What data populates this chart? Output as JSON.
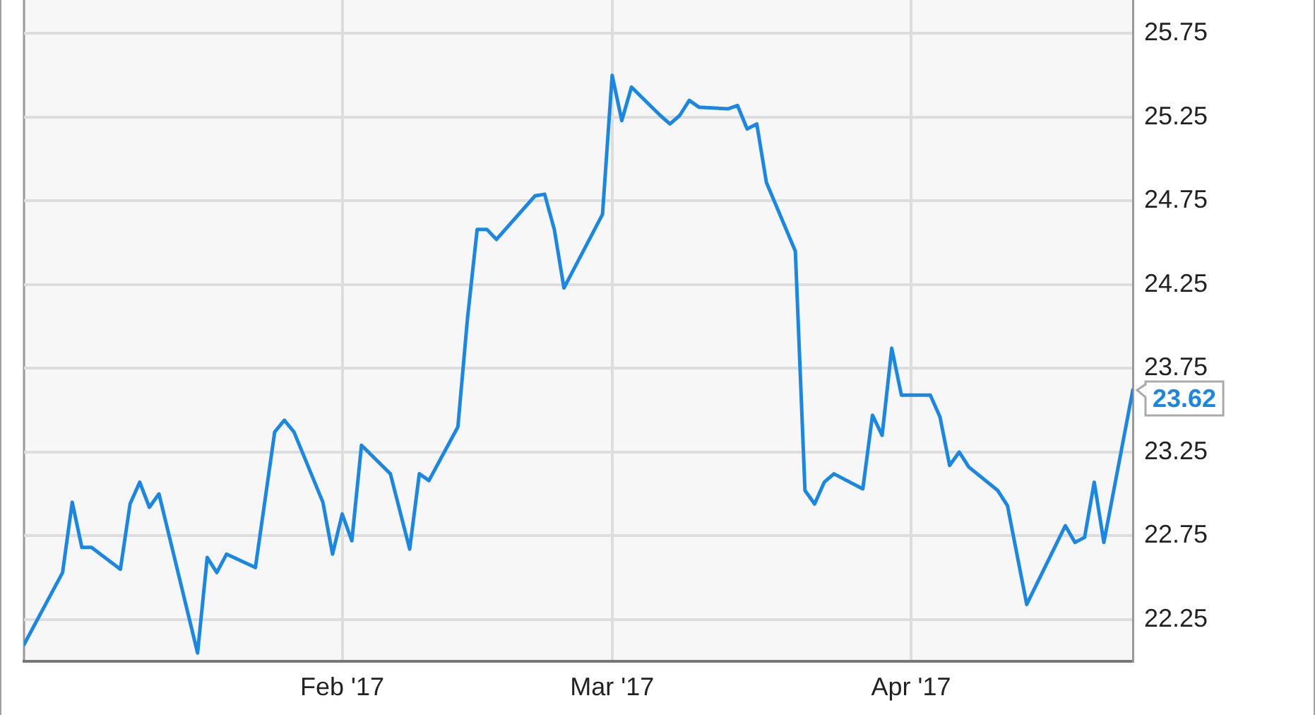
{
  "chart_data": {
    "type": "line",
    "x": [
      "2016-12-30",
      "2017-01-03",
      "2017-01-04",
      "2017-01-05",
      "2017-01-06",
      "2017-01-09",
      "2017-01-10",
      "2017-01-11",
      "2017-01-12",
      "2017-01-13",
      "2017-01-17",
      "2017-01-18",
      "2017-01-19",
      "2017-01-20",
      "2017-01-23",
      "2017-01-25",
      "2017-01-26",
      "2017-01-27",
      "2017-01-30",
      "2017-01-31",
      "2017-02-01",
      "2017-02-02",
      "2017-02-03",
      "2017-02-06",
      "2017-02-08",
      "2017-02-09",
      "2017-02-10",
      "2017-02-13",
      "2017-02-14",
      "2017-02-15",
      "2017-02-16",
      "2017-02-17",
      "2017-02-21",
      "2017-02-22",
      "2017-02-23",
      "2017-02-24",
      "2017-02-28",
      "2017-03-01",
      "2017-03-02",
      "2017-03-03",
      "2017-03-06",
      "2017-03-07",
      "2017-03-08",
      "2017-03-09",
      "2017-03-10",
      "2017-03-13",
      "2017-03-14",
      "2017-03-15",
      "2017-03-16",
      "2017-03-17",
      "2017-03-20",
      "2017-03-21",
      "2017-03-22",
      "2017-03-23",
      "2017-03-24",
      "2017-03-27",
      "2017-03-28",
      "2017-03-29",
      "2017-03-30",
      "2017-03-31",
      "2017-04-03",
      "2017-04-04",
      "2017-04-05",
      "2017-04-06",
      "2017-04-07",
      "2017-04-10",
      "2017-04-11",
      "2017-04-13",
      "2017-04-17",
      "2017-04-18",
      "2017-04-19",
      "2017-04-20",
      "2017-04-21",
      "2017-04-24"
    ],
    "values": [
      22.1,
      22.53,
      22.95,
      22.68,
      22.68,
      22.55,
      22.94,
      23.07,
      22.92,
      23.0,
      22.05,
      22.62,
      22.53,
      22.64,
      22.56,
      23.37,
      23.44,
      23.37,
      22.95,
      22.64,
      22.88,
      22.72,
      23.29,
      23.12,
      22.67,
      23.12,
      23.08,
      23.4,
      24.05,
      24.58,
      24.58,
      24.52,
      24.78,
      24.79,
      24.58,
      24.23,
      24.67,
      25.5,
      25.23,
      25.43,
      25.26,
      25.21,
      25.26,
      25.35,
      25.31,
      25.3,
      25.32,
      25.18,
      25.21,
      24.86,
      24.45,
      23.02,
      22.94,
      23.07,
      23.12,
      23.03,
      23.47,
      23.35,
      23.87,
      23.59,
      23.59,
      23.46,
      23.17,
      23.25,
      23.16,
      23.02,
      22.93,
      22.34,
      22.81,
      22.71,
      22.74,
      23.07,
      22.71,
      23.62
    ],
    "value_labels": [
      null,
      null,
      null,
      null,
      null,
      null,
      null,
      null,
      null,
      null,
      null,
      null,
      null,
      null,
      null,
      null,
      null,
      null,
      null,
      null,
      null,
      null,
      null,
      null,
      null,
      null,
      null,
      null,
      null,
      null,
      null,
      null,
      null,
      null,
      null,
      null,
      null,
      null,
      null,
      null,
      null,
      null,
      null,
      null,
      null,
      null,
      null,
      null,
      null,
      null,
      null,
      null,
      null,
      null,
      null,
      null,
      null,
      null,
      null,
      null,
      null,
      null,
      null,
      null,
      null,
      null,
      null,
      null,
      null,
      null,
      null,
      null,
      null,
      "23.62"
    ],
    "color": "#1a88e3",
    "xlim": [
      "2016-12-30",
      "2017-04-24"
    ],
    "xticks": [
      {
        "value": "2017-02-01",
        "label": "Feb '17"
      },
      {
        "value": "2017-03-01",
        "label": "Mar '17"
      },
      {
        "value": "2017-04-01",
        "label": "Apr '17"
      }
    ],
    "ylim": [
      22.0,
      25.95
    ],
    "yticks": [
      22.25,
      22.75,
      23.25,
      23.75,
      24.25,
      24.75,
      25.25,
      25.75
    ],
    "grid": true,
    "marker": "none"
  }
}
